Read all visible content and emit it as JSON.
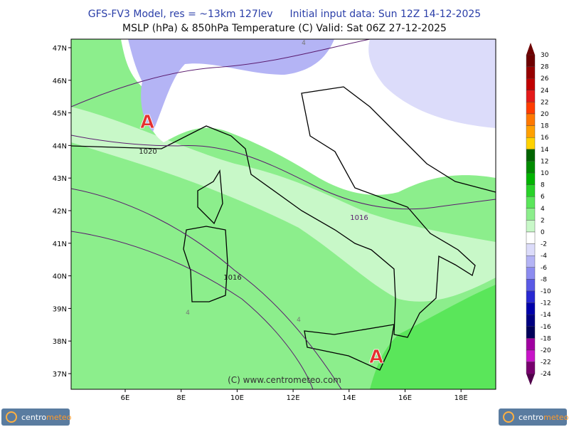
{
  "header": {
    "line1_left": "GFS-FV3 Model, res = ~13km 127lev",
    "line1_right": "Initial input data: Sun 12Z 14-12-2025",
    "line2": "MSLP (hPa) & 850hPa Temperature (C)  Valid: Sat 06Z 27-12-2025"
  },
  "map": {
    "lat_labels": [
      "47N",
      "46N",
      "45N",
      "44N",
      "43N",
      "42N",
      "41N",
      "40N",
      "39N",
      "38N",
      "37N"
    ],
    "lon_labels": [
      "6E",
      "8E",
      "10E",
      "12E",
      "14E",
      "16E",
      "18E"
    ],
    "high_markers": [
      "A",
      "A"
    ],
    "isobar_labels": [
      "1020",
      "1016",
      "1016"
    ],
    "isotherm_labels": [
      "4",
      "4",
      "4"
    ],
    "copyright": "(C) www.centrometeo.com"
  },
  "colorbar": {
    "levels": [
      {
        "label": "30",
        "color": "#6e0000"
      },
      {
        "label": "28",
        "color": "#960000"
      },
      {
        "label": "26",
        "color": "#c00000"
      },
      {
        "label": "24",
        "color": "#e41a1a"
      },
      {
        "label": "22",
        "color": "#ff3c00"
      },
      {
        "label": "20",
        "color": "#ff7800"
      },
      {
        "label": "18",
        "color": "#ffa000"
      },
      {
        "label": "16",
        "color": "#ffd200"
      },
      {
        "label": "14",
        "color": "#006400"
      },
      {
        "label": "12",
        "color": "#008c00"
      },
      {
        "label": "10",
        "color": "#00b400"
      },
      {
        "label": "8",
        "color": "#28d228"
      },
      {
        "label": "6",
        "color": "#5ae65a"
      },
      {
        "label": "4",
        "color": "#8cee8c"
      },
      {
        "label": "2",
        "color": "#c8f8c8"
      },
      {
        "label": "0",
        "color": "#ffffff"
      },
      {
        "label": "-2",
        "color": "#dcdcfa"
      },
      {
        "label": "-4",
        "color": "#b4b4f5"
      },
      {
        "label": "-6",
        "color": "#8c8cf0"
      },
      {
        "label": "-8",
        "color": "#5a5ae6"
      },
      {
        "label": "-10",
        "color": "#2828d2"
      },
      {
        "label": "-12",
        "color": "#0000aa"
      },
      {
        "label": "-14",
        "color": "#000082"
      },
      {
        "label": "-16",
        "color": "#00005a"
      },
      {
        "label": "-18",
        "color": "#a000a0"
      },
      {
        "label": "-20",
        "color": "#c814c8"
      },
      {
        "label": "-22",
        "color": "#78006e"
      },
      {
        "label": "-24",
        "color": "#50004b"
      }
    ]
  },
  "footer": {
    "logo_left": {
      "part1": "centro",
      "part2": "meteo"
    },
    "logo_right": {
      "part1": "centro",
      "part2": "meteo"
    }
  }
}
